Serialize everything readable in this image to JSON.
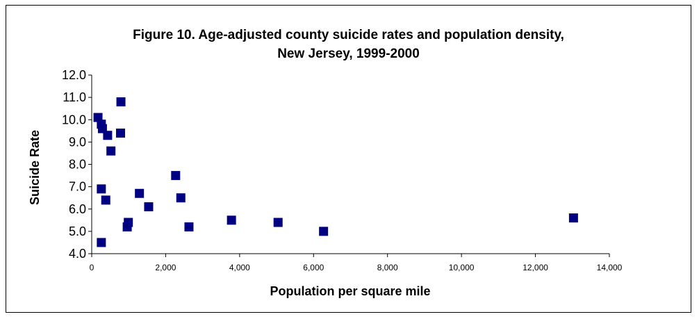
{
  "chart_data": {
    "type": "scatter",
    "title": "Figure 10. Age-adjusted county suicide rates and population density,",
    "subtitle": "New Jersey, 1999-2000",
    "xlabel": "Population per square mile",
    "ylabel": "Suicide Rate",
    "xlim": [
      0,
      14000
    ],
    "ylim": [
      4.0,
      12.0
    ],
    "x_ticks": [
      "0",
      "2,000",
      "4,000",
      "6,000",
      "8,000",
      "10,000",
      "12,000",
      "14,000"
    ],
    "y_ticks": [
      "4.0",
      "5.0",
      "6.0",
      "7.0",
      "8.0",
      "9.0",
      "10.0",
      "11.0",
      "12.0"
    ],
    "grid": false,
    "marker_color": "#000080",
    "points": [
      {
        "x": 170,
        "y": 10.1
      },
      {
        "x": 260,
        "y": 9.8
      },
      {
        "x": 290,
        "y": 9.6
      },
      {
        "x": 430,
        "y": 9.3
      },
      {
        "x": 520,
        "y": 8.6
      },
      {
        "x": 780,
        "y": 9.4
      },
      {
        "x": 790,
        "y": 10.8
      },
      {
        "x": 260,
        "y": 6.9
      },
      {
        "x": 380,
        "y": 6.4
      },
      {
        "x": 260,
        "y": 4.5
      },
      {
        "x": 960,
        "y": 5.2
      },
      {
        "x": 990,
        "y": 5.4
      },
      {
        "x": 1290,
        "y": 6.7
      },
      {
        "x": 1540,
        "y": 6.1
      },
      {
        "x": 2270,
        "y": 7.5
      },
      {
        "x": 2410,
        "y": 6.5
      },
      {
        "x": 2630,
        "y": 5.2
      },
      {
        "x": 3780,
        "y": 5.5
      },
      {
        "x": 5040,
        "y": 5.4
      },
      {
        "x": 6270,
        "y": 5.0
      },
      {
        "x": 13030,
        "y": 5.6
      }
    ]
  }
}
